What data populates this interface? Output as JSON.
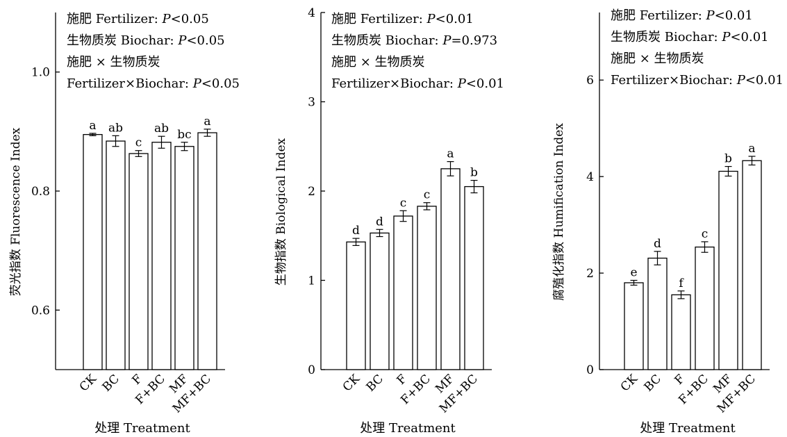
{
  "chart_data": [
    {
      "type": "bar",
      "categories": [
        "CK",
        "BC",
        "F",
        "F+BC",
        "MF",
        "MF+BC"
      ],
      "values": [
        0.895,
        0.884,
        0.863,
        0.882,
        0.875,
        0.898
      ],
      "errors": [
        0.002,
        0.009,
        0.005,
        0.01,
        0.007,
        0.006
      ],
      "letters": [
        "a",
        "ab",
        "c",
        "ab",
        "bc",
        "a"
      ],
      "xlabel": "处理 Treatment",
      "ylabel": "荧光指数 Fluorescence Index",
      "ylim": [
        0.5,
        1.1
      ],
      "yticks": [
        0.6,
        0.8,
        1.0
      ],
      "ytick_labels": [
        "0.6",
        "0.8",
        "1.0"
      ],
      "annotations": [
        [
          {
            "text": "施肥 Fertilizer: "
          },
          {
            "text": "P",
            "italic": true
          },
          {
            "text": "<0.05"
          }
        ],
        [
          {
            "text": "生物质炭 Biochar: "
          },
          {
            "text": "P",
            "italic": true
          },
          {
            "text": "<0.05"
          }
        ],
        [
          {
            "text": "施肥 × 生物质炭"
          }
        ],
        [
          {
            "text": "Fertilizer×Biochar: "
          },
          {
            "text": "P",
            "italic": true
          },
          {
            "text": "<0.05"
          }
        ]
      ]
    },
    {
      "type": "bar",
      "categories": [
        "CK",
        "BC",
        "F",
        "F+BC",
        "MF",
        "MF+BC"
      ],
      "values": [
        1.43,
        1.53,
        1.72,
        1.83,
        2.25,
        2.05
      ],
      "errors": [
        0.04,
        0.04,
        0.06,
        0.04,
        0.08,
        0.07
      ],
      "letters": [
        "d",
        "d",
        "c",
        "c",
        "a",
        "b"
      ],
      "xlabel": "处理 Treatment",
      "ylabel": "生物指数 Biological Index",
      "ylim": [
        0,
        4
      ],
      "yticks": [
        0,
        1,
        2,
        3,
        4
      ],
      "ytick_labels": [
        "0",
        "1",
        "2",
        "3",
        "4"
      ],
      "annotations": [
        [
          {
            "text": "施肥 Fertilizer: "
          },
          {
            "text": "P",
            "italic": true
          },
          {
            "text": "<0.01"
          }
        ],
        [
          {
            "text": "生物质炭 Biochar: "
          },
          {
            "text": "P",
            "italic": true
          },
          {
            "text": "=0.973"
          }
        ],
        [
          {
            "text": "施肥 × 生物质炭"
          }
        ],
        [
          {
            "text": "Fertilizer×Biochar: "
          },
          {
            "text": "P",
            "italic": true
          },
          {
            "text": "<0.01"
          }
        ]
      ]
    },
    {
      "type": "bar",
      "categories": [
        "CK",
        "BC",
        "F",
        "F+BC",
        "MF",
        "MF+BC"
      ],
      "values": [
        1.8,
        2.31,
        1.55,
        2.54,
        4.11,
        4.33
      ],
      "errors": [
        0.05,
        0.14,
        0.08,
        0.11,
        0.1,
        0.09
      ],
      "letters": [
        "e",
        "d",
        "f",
        "c",
        "b",
        "a"
      ],
      "xlabel": "处理 Treatment",
      "ylabel": "腐殖化指数 Humification Index",
      "ylim": [
        0,
        7.4
      ],
      "yticks": [
        0,
        2,
        4,
        6
      ],
      "ytick_labels": [
        "0",
        "2",
        "4",
        "6"
      ],
      "annotations": [
        [
          {
            "text": "施肥 Fertilizer: "
          },
          {
            "text": "P",
            "italic": true
          },
          {
            "text": "<0.01"
          }
        ],
        [
          {
            "text": "生物质炭 Biochar: "
          },
          {
            "text": "P",
            "italic": true
          },
          {
            "text": "<0.01"
          }
        ],
        [
          {
            "text": "施肥 × 生物质炭"
          }
        ],
        [
          {
            "text": "Fertilizer×Biochar: "
          },
          {
            "text": "P",
            "italic": true
          },
          {
            "text": "<0.01"
          }
        ]
      ]
    }
  ]
}
